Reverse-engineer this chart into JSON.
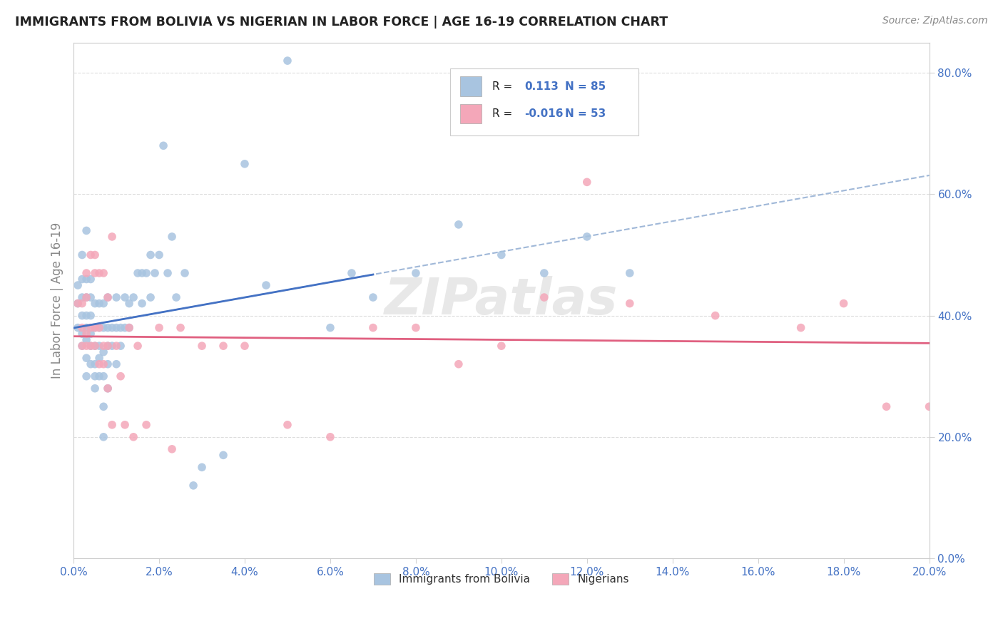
{
  "title": "IMMIGRANTS FROM BOLIVIA VS NIGERIAN IN LABOR FORCE | AGE 16-19 CORRELATION CHART",
  "source": "Source: ZipAtlas.com",
  "ylabel": "In Labor Force | Age 16-19",
  "legend_label1": "Immigrants from Bolivia",
  "legend_label2": "Nigerians",
  "r1": 0.113,
  "n1": 85,
  "r2": -0.016,
  "n2": 53,
  "color1": "#a8c4e0",
  "color2": "#f4a7b9",
  "trendline1_color": "#4472c4",
  "trendline2_color": "#e06080",
  "trendline1_dashed_color": "#a0b8d8",
  "watermark": "ZIPatlas",
  "xlim": [
    0.0,
    0.2
  ],
  "ylim": [
    0.0,
    0.85
  ],
  "x_ticks": [
    0.0,
    0.02,
    0.04,
    0.06,
    0.08,
    0.1,
    0.12,
    0.14,
    0.16,
    0.18,
    0.2
  ],
  "y_ticks": [
    0.0,
    0.2,
    0.4,
    0.6,
    0.8
  ],
  "bolivia_x": [
    0.001,
    0.001,
    0.001,
    0.002,
    0.002,
    0.002,
    0.002,
    0.002,
    0.002,
    0.003,
    0.003,
    0.003,
    0.003,
    0.003,
    0.003,
    0.003,
    0.003,
    0.004,
    0.004,
    0.004,
    0.004,
    0.004,
    0.004,
    0.005,
    0.005,
    0.005,
    0.005,
    0.005,
    0.005,
    0.006,
    0.006,
    0.006,
    0.006,
    0.006,
    0.007,
    0.007,
    0.007,
    0.007,
    0.007,
    0.007,
    0.008,
    0.008,
    0.008,
    0.008,
    0.008,
    0.009,
    0.009,
    0.01,
    0.01,
    0.01,
    0.011,
    0.011,
    0.012,
    0.012,
    0.013,
    0.013,
    0.014,
    0.015,
    0.016,
    0.016,
    0.017,
    0.018,
    0.018,
    0.019,
    0.02,
    0.021,
    0.022,
    0.023,
    0.024,
    0.026,
    0.028,
    0.03,
    0.035,
    0.04,
    0.045,
    0.05,
    0.06,
    0.065,
    0.07,
    0.08,
    0.09,
    0.1,
    0.11,
    0.12,
    0.13
  ],
  "bolivia_y": [
    0.38,
    0.42,
    0.45,
    0.35,
    0.37,
    0.4,
    0.43,
    0.46,
    0.5,
    0.3,
    0.33,
    0.36,
    0.38,
    0.4,
    0.43,
    0.46,
    0.54,
    0.32,
    0.35,
    0.37,
    0.4,
    0.43,
    0.46,
    0.28,
    0.3,
    0.32,
    0.35,
    0.38,
    0.42,
    0.3,
    0.33,
    0.35,
    0.38,
    0.42,
    0.2,
    0.25,
    0.3,
    0.34,
    0.38,
    0.42,
    0.28,
    0.32,
    0.35,
    0.38,
    0.43,
    0.35,
    0.38,
    0.32,
    0.38,
    0.43,
    0.35,
    0.38,
    0.38,
    0.43,
    0.38,
    0.42,
    0.43,
    0.47,
    0.42,
    0.47,
    0.47,
    0.43,
    0.5,
    0.47,
    0.5,
    0.68,
    0.47,
    0.53,
    0.43,
    0.47,
    0.12,
    0.15,
    0.17,
    0.65,
    0.45,
    0.82,
    0.38,
    0.47,
    0.43,
    0.47,
    0.55,
    0.5,
    0.47,
    0.53,
    0.47
  ],
  "nigerian_x": [
    0.001,
    0.002,
    0.002,
    0.002,
    0.003,
    0.003,
    0.003,
    0.003,
    0.004,
    0.004,
    0.004,
    0.005,
    0.005,
    0.005,
    0.005,
    0.006,
    0.006,
    0.006,
    0.007,
    0.007,
    0.007,
    0.008,
    0.008,
    0.008,
    0.009,
    0.009,
    0.01,
    0.011,
    0.012,
    0.013,
    0.014,
    0.015,
    0.017,
    0.02,
    0.023,
    0.025,
    0.03,
    0.035,
    0.04,
    0.05,
    0.06,
    0.07,
    0.08,
    0.09,
    0.1,
    0.11,
    0.12,
    0.13,
    0.15,
    0.17,
    0.18,
    0.19,
    0.2
  ],
  "nigerian_y": [
    0.42,
    0.35,
    0.38,
    0.42,
    0.35,
    0.37,
    0.43,
    0.47,
    0.35,
    0.38,
    0.5,
    0.35,
    0.38,
    0.47,
    0.5,
    0.32,
    0.38,
    0.47,
    0.32,
    0.35,
    0.47,
    0.28,
    0.35,
    0.43,
    0.22,
    0.53,
    0.35,
    0.3,
    0.22,
    0.38,
    0.2,
    0.35,
    0.22,
    0.38,
    0.18,
    0.38,
    0.35,
    0.35,
    0.35,
    0.22,
    0.2,
    0.38,
    0.38,
    0.32,
    0.35,
    0.43,
    0.62,
    0.42,
    0.4,
    0.38,
    0.42,
    0.25,
    0.25
  ]
}
